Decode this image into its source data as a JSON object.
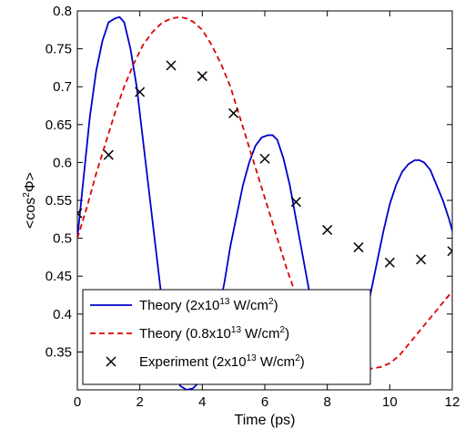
{
  "chart_data": {
    "type": "line",
    "title": "",
    "xlabel": "Time (ps)",
    "ylabel_parts": {
      "pre": "<cos",
      "sup": "2",
      "post": "Φ>"
    },
    "xlim": [
      0,
      12
    ],
    "ylim": [
      0.3,
      0.8
    ],
    "xticks": [
      0,
      2,
      4,
      6,
      8,
      10,
      12
    ],
    "yticks": [
      0.35,
      0.4,
      0.45,
      0.5,
      0.55,
      0.6,
      0.65,
      0.7,
      0.75,
      0.8
    ],
    "grid": false,
    "legend_position": "bottom-left",
    "series": [
      {
        "kind": "line",
        "style": "solid",
        "color": "#0000cc",
        "legend": {
          "pre": "Theory (2x10",
          "sup": "13",
          "post": " W/cm",
          "sup2": "2",
          "end": ")"
        },
        "x": [
          0,
          0.2,
          0.4,
          0.6,
          0.8,
          1.0,
          1.2,
          1.35,
          1.5,
          1.7,
          1.9,
          2.1,
          2.3,
          2.5,
          2.7,
          2.9,
          3.1,
          3.3,
          3.5,
          3.7,
          3.9,
          4.1,
          4.3,
          4.5,
          4.7,
          4.9,
          5.1,
          5.3,
          5.5,
          5.7,
          5.9,
          6.1,
          6.25,
          6.4,
          6.6,
          6.8,
          7.0,
          7.2,
          7.4,
          7.6,
          7.8,
          8.0,
          8.2,
          8.4,
          8.6,
          8.8,
          9.0,
          9.2,
          9.4,
          9.6,
          9.8,
          10.0,
          10.2,
          10.4,
          10.6,
          10.8,
          10.95,
          11.1,
          11.3,
          11.5,
          11.7,
          11.9,
          12.0
        ],
        "y": [
          0.5,
          0.58,
          0.66,
          0.72,
          0.76,
          0.785,
          0.79,
          0.792,
          0.785,
          0.75,
          0.7,
          0.63,
          0.56,
          0.49,
          0.42,
          0.36,
          0.32,
          0.305,
          0.3,
          0.302,
          0.31,
          0.33,
          0.36,
          0.4,
          0.44,
          0.49,
          0.53,
          0.57,
          0.6,
          0.622,
          0.633,
          0.636,
          0.636,
          0.63,
          0.605,
          0.57,
          0.525,
          0.48,
          0.435,
          0.395,
          0.36,
          0.335,
          0.32,
          0.312,
          0.315,
          0.33,
          0.355,
          0.39,
          0.43,
          0.47,
          0.51,
          0.545,
          0.57,
          0.588,
          0.598,
          0.603,
          0.603,
          0.6,
          0.59,
          0.57,
          0.55,
          0.525,
          0.51
        ]
      },
      {
        "kind": "line",
        "style": "dashed",
        "color": "#dd0000",
        "legend": {
          "pre": "Theory (0.8x10",
          "sup": "13",
          "post": " W/cm",
          "sup2": "2",
          "end": ")"
        },
        "x": [
          0,
          0.3,
          0.6,
          0.9,
          1.2,
          1.5,
          1.8,
          2.1,
          2.4,
          2.7,
          3.0,
          3.3,
          3.5,
          3.7,
          4.0,
          4.3,
          4.6,
          4.9,
          5.2,
          5.5,
          5.8,
          6.1,
          6.4,
          6.7,
          7.0,
          7.3,
          7.6,
          7.9,
          8.2,
          8.5,
          8.8,
          9.1,
          9.4,
          9.7,
          10.0,
          10.3,
          10.6,
          10.9,
          11.2,
          11.5,
          11.8,
          12.0
        ],
        "y": [
          0.5,
          0.54,
          0.585,
          0.625,
          0.665,
          0.7,
          0.73,
          0.755,
          0.772,
          0.784,
          0.79,
          0.792,
          0.79,
          0.786,
          0.775,
          0.755,
          0.73,
          0.7,
          0.66,
          0.62,
          0.58,
          0.54,
          0.5,
          0.46,
          0.425,
          0.395,
          0.37,
          0.35,
          0.337,
          0.33,
          0.327,
          0.327,
          0.328,
          0.33,
          0.335,
          0.345,
          0.36,
          0.375,
          0.39,
          0.405,
          0.42,
          0.43
        ]
      },
      {
        "kind": "scatter",
        "marker": "x",
        "color": "#000000",
        "legend": {
          "pre": "Experiment (2x10",
          "sup": "13",
          "post": " W/cm",
          "sup2": "2",
          "end": ")"
        },
        "x": [
          0,
          1,
          2,
          3,
          4,
          5,
          6,
          7,
          8,
          9,
          10,
          11,
          12
        ],
        "y": [
          0.533,
          0.61,
          0.693,
          0.728,
          0.714,
          0.665,
          0.605,
          0.548,
          0.511,
          0.488,
          0.468,
          0.472,
          0.483
        ]
      }
    ]
  }
}
